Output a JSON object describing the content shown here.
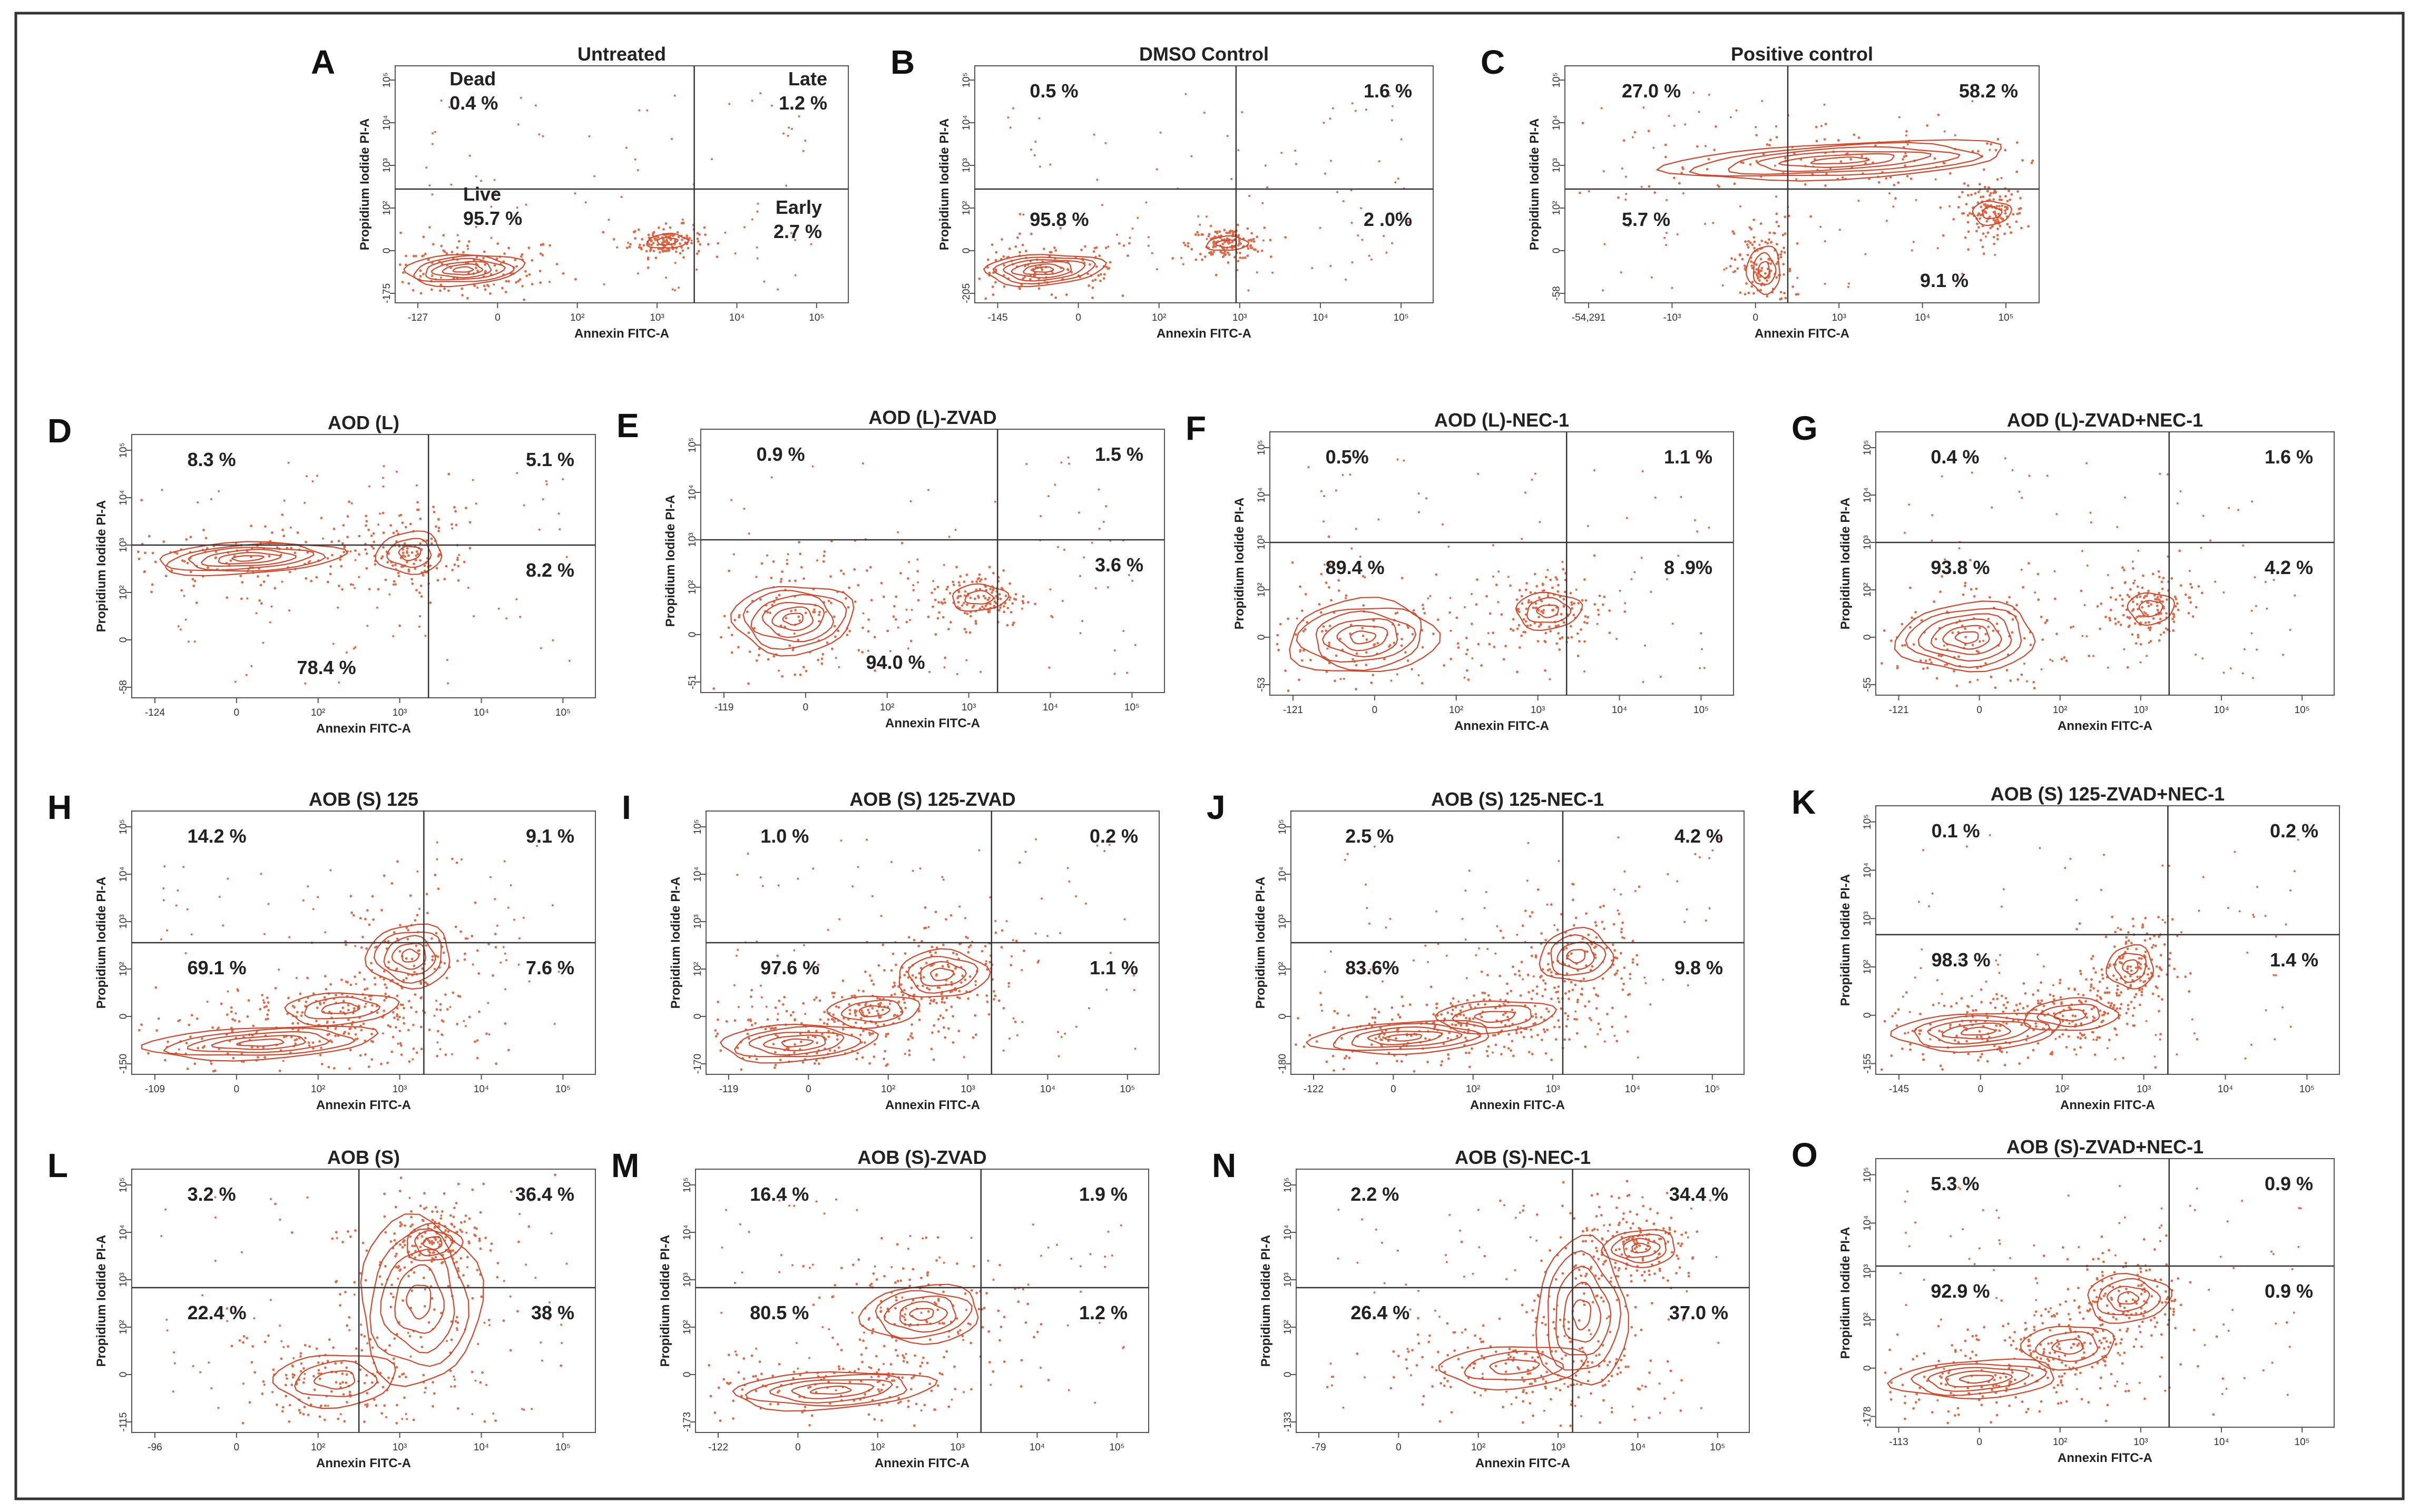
{
  "figure": {
    "xlabel": "Annexin FITC-A",
    "ylabel": "Propidium Iodide PI-A",
    "colors": {
      "contour": "#d2472a",
      "dots": "#e06a45",
      "axes": "#555555",
      "frame": "#333333"
    }
  },
  "chart_data": [
    {
      "letter": "A",
      "type": "contour",
      "title": "Untreated",
      "quadrants": {
        "UL": [
          "Dead",
          "0.4 %"
        ],
        "UR": [
          "Late",
          "1.2 %"
        ],
        "LL": [
          "Live",
          "95.7 %"
        ],
        "LR": [
          "Early",
          "2.7 %"
        ]
      },
      "x_ticks": [
        "-127",
        "0",
        "10²",
        "10³",
        "10⁴",
        "10⁵"
      ],
      "y_ticks": [
        "-175",
        "0",
        "10²",
        "10³",
        "10⁴",
        "10⁵"
      ],
      "gate_x": 0.66,
      "gate_y": 0.48,
      "populations": [
        {
          "x": 0.15,
          "y": 0.14,
          "rx": 0.13,
          "ry": 0.065,
          "rings": 6
        },
        {
          "x": 0.6,
          "y": 0.26,
          "rx": 0.045,
          "ry": 0.03,
          "rings": 2
        }
      ]
    },
    {
      "letter": "B",
      "type": "contour",
      "title": "DMSO Control",
      "quadrants": {
        "UL": [
          "0.5 %"
        ],
        "UR": [
          "1.6 %"
        ],
        "LL": [
          "95.8 %"
        ],
        "LR": [
          "2 .0%"
        ]
      },
      "x_ticks": [
        "-145",
        "0",
        "10²",
        "10³",
        "10⁴",
        "10⁵"
      ],
      "y_ticks": [
        "-205",
        "0",
        "10²",
        "10³",
        "10⁴",
        "10⁵"
      ],
      "gate_x": 0.57,
      "gate_y": 0.48,
      "populations": [
        {
          "x": 0.15,
          "y": 0.14,
          "rx": 0.13,
          "ry": 0.065,
          "rings": 6
        },
        {
          "x": 0.55,
          "y": 0.25,
          "rx": 0.045,
          "ry": 0.03,
          "rings": 2
        }
      ]
    },
    {
      "letter": "C",
      "type": "contour",
      "title": "Positive control",
      "quadrants": {
        "UL": [
          "27.0 %"
        ],
        "UR": [
          "58.2 %"
        ],
        "LL": [
          "5.7 %"
        ],
        "LR": [
          "9.1 %"
        ]
      },
      "x_ticks": [
        "-54,291",
        "-10³",
        "0",
        "10³",
        "10⁴",
        "10⁵"
      ],
      "y_ticks": [
        "-58",
        "0",
        "10²",
        "10³",
        "10⁴",
        "10⁵"
      ],
      "gate_x": 0.47,
      "gate_y": 0.48,
      "populations": [
        {
          "x": 0.58,
          "y": 0.6,
          "rx": 0.36,
          "ry": 0.075,
          "rings": 6
        },
        {
          "x": 0.42,
          "y": 0.14,
          "rx": 0.035,
          "ry": 0.1,
          "rings": 3
        },
        {
          "x": 0.9,
          "y": 0.38,
          "rx": 0.04,
          "ry": 0.05,
          "rings": 2
        }
      ]
    },
    {
      "letter": "D",
      "type": "contour",
      "title": "AOD (L)",
      "quadrants": {
        "UL": [
          "8.3 %"
        ],
        "UR": [
          "5.1 %"
        ],
        "LL": [
          "78.4 %"
        ],
        "LR": [
          "8.2 %"
        ]
      },
      "x_ticks": [
        "-124",
        "0",
        "10²",
        "10³",
        "10⁴",
        "10⁵"
      ],
      "y_ticks": [
        "-58",
        "0",
        "10²",
        "10³",
        "10⁴",
        "10⁵"
      ],
      "gate_x": 0.64,
      "gate_y": 0.58,
      "populations": [
        {
          "x": 0.25,
          "y": 0.53,
          "rx": 0.2,
          "ry": 0.06,
          "rings": 6
        },
        {
          "x": 0.6,
          "y": 0.55,
          "rx": 0.07,
          "ry": 0.08,
          "rings": 3
        }
      ]
    },
    {
      "letter": "E",
      "type": "contour",
      "title": "AOD (L)-ZVAD",
      "quadrants": {
        "UL": [
          "0.9 %"
        ],
        "UR": [
          "1.5 %"
        ],
        "LL": [
          "94.0 %"
        ],
        "LR": [
          "3.6 %"
        ]
      },
      "x_ticks": [
        "-119",
        "0",
        "10²",
        "10³",
        "10⁴",
        "10⁵"
      ],
      "y_ticks": [
        "-51",
        "0",
        "10²",
        "10³",
        "10⁴",
        "10⁵"
      ],
      "gate_x": 0.64,
      "gate_y": 0.58,
      "populations": [
        {
          "x": 0.2,
          "y": 0.28,
          "rx": 0.13,
          "ry": 0.13,
          "rings": 6
        },
        {
          "x": 0.6,
          "y": 0.36,
          "rx": 0.06,
          "ry": 0.05,
          "rings": 2
        }
      ]
    },
    {
      "letter": "F",
      "type": "contour",
      "title": "AOD (L)-NEC-1",
      "quadrants": {
        "UL": [
          "0.5%"
        ],
        "UR": [
          "1.1 %"
        ],
        "LL": [
          "89.4 %"
        ],
        "LR": [
          "8 .9%"
        ]
      },
      "x_ticks": [
        "-121",
        "0",
        "10²",
        "10³",
        "10⁴",
        "10⁵"
      ],
      "y_ticks": [
        "-53",
        "0",
        "10²",
        "10³",
        "10⁴",
        "10⁵"
      ],
      "gate_x": 0.64,
      "gate_y": 0.58,
      "populations": [
        {
          "x": 0.2,
          "y": 0.22,
          "rx": 0.16,
          "ry": 0.14,
          "rings": 6
        },
        {
          "x": 0.6,
          "y": 0.32,
          "rx": 0.07,
          "ry": 0.07,
          "rings": 3
        }
      ]
    },
    {
      "letter": "G",
      "type": "contour",
      "title": "AOD (L)-ZVAD+NEC-1",
      "quadrants": {
        "UL": [
          "0.4 %"
        ],
        "UR": [
          "1.6 %"
        ],
        "LL": [
          "93.8 %"
        ],
        "LR": [
          "4.2 %"
        ]
      },
      "x_ticks": [
        "-121",
        "0",
        "10²",
        "10³",
        "10⁴",
        "10⁵"
      ],
      "y_ticks": [
        "-55",
        "0",
        "10²",
        "10³",
        "10⁴",
        "10⁵"
      ],
      "gate_x": 0.64,
      "gate_y": 0.58,
      "populations": [
        {
          "x": 0.2,
          "y": 0.22,
          "rx": 0.15,
          "ry": 0.13,
          "rings": 6
        },
        {
          "x": 0.6,
          "y": 0.33,
          "rx": 0.05,
          "ry": 0.06,
          "rings": 2
        }
      ]
    },
    {
      "letter": "H",
      "type": "contour",
      "title": "AOB (S) 125",
      "quadrants": {
        "UL": [
          "14.2 %"
        ],
        "UR": [
          "9.1 %"
        ],
        "LL": [
          "69.1 %"
        ],
        "LR": [
          "7.6 %"
        ]
      },
      "x_ticks": [
        "-109",
        "0",
        "10²",
        "10³",
        "10⁴",
        "10⁵"
      ],
      "y_ticks": [
        "-150",
        "0",
        "10²",
        "10³",
        "10⁴",
        "10⁵"
      ],
      "gate_x": 0.63,
      "gate_y": 0.5,
      "populations": [
        {
          "x": 0.28,
          "y": 0.12,
          "rx": 0.25,
          "ry": 0.06,
          "rings": 5
        },
        {
          "x": 0.45,
          "y": 0.25,
          "rx": 0.12,
          "ry": 0.06,
          "rings": 3
        },
        {
          "x": 0.6,
          "y": 0.45,
          "rx": 0.09,
          "ry": 0.12,
          "rings": 5
        }
      ]
    },
    {
      "letter": "I",
      "type": "contour",
      "title": "AOB (S) 125-ZVAD",
      "quadrants": {
        "UL": [
          "1.0 %"
        ],
        "UR": [
          "0.2 %"
        ],
        "LL": [
          "97.6 %"
        ],
        "LR": [
          "1.1 %"
        ]
      },
      "x_ticks": [
        "-119",
        "0",
        "10²",
        "10³",
        "10⁴",
        "10⁵"
      ],
      "y_ticks": [
        "-170",
        "0",
        "10²",
        "10³",
        "10⁴",
        "10⁵"
      ],
      "gate_x": 0.63,
      "gate_y": 0.5,
      "populations": [
        {
          "x": 0.2,
          "y": 0.12,
          "rx": 0.17,
          "ry": 0.07,
          "rings": 5
        },
        {
          "x": 0.37,
          "y": 0.24,
          "rx": 0.1,
          "ry": 0.06,
          "rings": 3
        },
        {
          "x": 0.52,
          "y": 0.38,
          "rx": 0.1,
          "ry": 0.09,
          "rings": 4
        }
      ]
    },
    {
      "letter": "J",
      "type": "contour",
      "title": "AOB (S) 125-NEC-1",
      "quadrants": {
        "UL": [
          "2.5 %"
        ],
        "UR": [
          "4.2 %"
        ],
        "LL": [
          "83.6%"
        ],
        "LR": [
          "9.8 %"
        ]
      },
      "x_ticks": [
        "-122",
        "0",
        "10²",
        "10³",
        "10⁴",
        "10⁵"
      ],
      "y_ticks": [
        "-180",
        "0",
        "10²",
        "10³",
        "10⁴",
        "10⁵"
      ],
      "gate_x": 0.6,
      "gate_y": 0.5,
      "populations": [
        {
          "x": 0.25,
          "y": 0.14,
          "rx": 0.2,
          "ry": 0.06,
          "rings": 5
        },
        {
          "x": 0.45,
          "y": 0.22,
          "rx": 0.13,
          "ry": 0.06,
          "rings": 3
        },
        {
          "x": 0.63,
          "y": 0.45,
          "rx": 0.08,
          "ry": 0.1,
          "rings": 4
        }
      ]
    },
    {
      "letter": "K",
      "type": "contour",
      "title": "AOB (S) 125-ZVAD+NEC-1",
      "quadrants": {
        "UL": [
          "0.1 %"
        ],
        "UR": [
          "0.2 %"
        ],
        "LL": [
          "98.3 %"
        ],
        "LR": [
          "1.4 %"
        ]
      },
      "x_ticks": [
        "-145",
        "0",
        "10²",
        "10³",
        "10⁴",
        "10⁵"
      ],
      "y_ticks": [
        "-155",
        "0",
        "10²",
        "10³",
        "10⁴",
        "10⁵"
      ],
      "gate_x": 0.63,
      "gate_y": 0.52,
      "populations": [
        {
          "x": 0.22,
          "y": 0.16,
          "rx": 0.18,
          "ry": 0.07,
          "rings": 5
        },
        {
          "x": 0.42,
          "y": 0.22,
          "rx": 0.1,
          "ry": 0.06,
          "rings": 3
        },
        {
          "x": 0.55,
          "y": 0.4,
          "rx": 0.05,
          "ry": 0.08,
          "rings": 3
        }
      ]
    },
    {
      "letter": "L",
      "type": "contour",
      "title": "AOB (S)",
      "quadrants": {
        "UL": [
          "3.2 %"
        ],
        "UR": [
          "36.4 %"
        ],
        "LL": [
          "22.4 %"
        ],
        "LR": [
          "38 %"
        ]
      },
      "x_ticks": [
        "-96",
        "0",
        "10²",
        "10³",
        "10⁴",
        "10⁵"
      ],
      "y_ticks": [
        "-115",
        "0",
        "10²",
        "10³",
        "10⁴",
        "10⁵"
      ],
      "gate_x": 0.49,
      "gate_y": 0.55,
      "populations": [
        {
          "x": 0.62,
          "y": 0.5,
          "rx": 0.13,
          "ry": 0.32,
          "rings": 5
        },
        {
          "x": 0.44,
          "y": 0.2,
          "rx": 0.13,
          "ry": 0.1,
          "rings": 3
        },
        {
          "x": 0.65,
          "y": 0.72,
          "rx": 0.06,
          "ry": 0.07,
          "rings": 3
        }
      ]
    },
    {
      "letter": "M",
      "type": "contour",
      "title": "AOB (S)-ZVAD",
      "quadrants": {
        "UL": [
          "16.4 %"
        ],
        "UR": [
          "1.9 %"
        ],
        "LL": [
          "80.5 %"
        ],
        "LR": [
          "1.2 %"
        ]
      },
      "x_ticks": [
        "-122",
        "0",
        "10²",
        "10³",
        "10⁴",
        "10⁵"
      ],
      "y_ticks": [
        "-173",
        "0",
        "10²",
        "10³",
        "10⁴",
        "10⁵"
      ],
      "gate_x": 0.63,
      "gate_y": 0.55,
      "populations": [
        {
          "x": 0.3,
          "y": 0.16,
          "rx": 0.22,
          "ry": 0.07,
          "rings": 5
        },
        {
          "x": 0.5,
          "y": 0.45,
          "rx": 0.13,
          "ry": 0.11,
          "rings": 5
        }
      ]
    },
    {
      "letter": "N",
      "type": "contour",
      "title": "AOB (S)-NEC-1",
      "quadrants": {
        "UL": [
          "2.2 %"
        ],
        "UR": [
          "34.4 %"
        ],
        "LL": [
          "26.4 %"
        ],
        "LR": [
          "37.0 %"
        ]
      },
      "x_ticks": [
        "-79",
        "0",
        "10²",
        "10³",
        "10⁴",
        "10⁵"
      ],
      "y_ticks": [
        "-133",
        "0",
        "10²",
        "10³",
        "10⁴",
        "10⁵"
      ],
      "gate_x": 0.61,
      "gate_y": 0.55,
      "populations": [
        {
          "x": 0.63,
          "y": 0.45,
          "rx": 0.1,
          "ry": 0.28,
          "rings": 5
        },
        {
          "x": 0.48,
          "y": 0.25,
          "rx": 0.16,
          "ry": 0.08,
          "rings": 3
        },
        {
          "x": 0.76,
          "y": 0.7,
          "rx": 0.08,
          "ry": 0.07,
          "rings": 4
        }
      ]
    },
    {
      "letter": "O",
      "type": "contour",
      "title": "AOB (S)-ZVAD+NEC-1",
      "quadrants": {
        "UL": [
          "5.3 %"
        ],
        "UR": [
          "0.9 %"
        ],
        "LL": [
          "92.9 %"
        ],
        "LR": [
          "0.9 %"
        ]
      },
      "x_ticks": [
        "-113",
        "0",
        "10²",
        "10³",
        "10⁴",
        "10⁵"
      ],
      "y_ticks": [
        "-178",
        "0",
        "10²",
        "10³",
        "10⁴",
        "10⁵"
      ],
      "gate_x": 0.64,
      "gate_y": 0.6,
      "populations": [
        {
          "x": 0.22,
          "y": 0.18,
          "rx": 0.18,
          "ry": 0.07,
          "rings": 5
        },
        {
          "x": 0.42,
          "y": 0.3,
          "rx": 0.1,
          "ry": 0.08,
          "rings": 3
        },
        {
          "x": 0.55,
          "y": 0.48,
          "rx": 0.09,
          "ry": 0.09,
          "rings": 4
        }
      ]
    }
  ]
}
